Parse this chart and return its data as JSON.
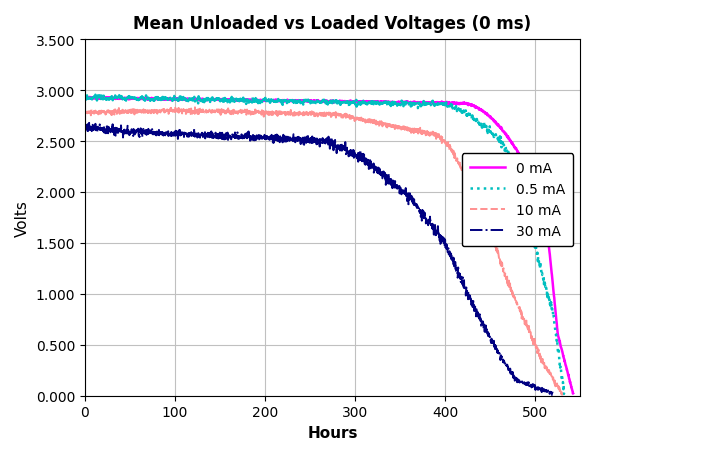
{
  "title": "Mean Unloaded vs Loaded Voltages (0 ms)",
  "xlabel": "Hours",
  "ylabel": "Volts",
  "xlim": [
    0,
    550
  ],
  "ylim": [
    0.0,
    3.5
  ],
  "xticks": [
    0,
    100,
    200,
    300,
    400,
    500
  ],
  "yticks": [
    0.0,
    0.5,
    1.0,
    1.5,
    2.0,
    2.5,
    3.0,
    3.5
  ],
  "series": [
    {
      "label": "0 mA",
      "color": "#FF00FF",
      "linestyle": "solid",
      "linewidth": 1.8,
      "end_hour": 542,
      "segments": [
        {
          "t0": 0,
          "t1": 420,
          "v0": 2.925,
          "v1": 2.87,
          "noise": 0.004
        },
        {
          "t0": 420,
          "t1": 510,
          "v0": 2.87,
          "v1": 1.9,
          "noise": 0.004,
          "curve": 1.8
        },
        {
          "t0": 510,
          "t1": 520,
          "v0": 1.9,
          "v1": 1.05,
          "noise": 0.004,
          "curve": 1.0
        },
        {
          "t0": 520,
          "t1": 525,
          "v0": 1.05,
          "v1": 0.6,
          "noise": 0.004,
          "curve": 1.0
        },
        {
          "t0": 525,
          "t1": 542,
          "v0": 0.6,
          "v1": 0.02,
          "noise": 0.004,
          "curve": 1.0
        }
      ]
    },
    {
      "label": "0.5 mA",
      "color": "#00BFBF",
      "linestyle": "dotted",
      "linewidth": 1.8,
      "end_hour": 532,
      "segments": [
        {
          "t0": 0,
          "t1": 400,
          "v0": 2.93,
          "v1": 2.86,
          "noise": 0.012
        },
        {
          "t0": 400,
          "t1": 460,
          "v0": 2.86,
          "v1": 2.5,
          "noise": 0.015,
          "curve": 1.5
        },
        {
          "t0": 460,
          "t1": 500,
          "v0": 2.5,
          "v1": 1.45,
          "noise": 0.02,
          "curve": 1.5
        },
        {
          "t0": 500,
          "t1": 520,
          "v0": 1.45,
          "v1": 0.8,
          "noise": 0.02,
          "curve": 1.0
        },
        {
          "t0": 520,
          "t1": 532,
          "v0": 0.8,
          "v1": 0.02,
          "noise": 0.02,
          "curve": 1.0
        }
      ]
    },
    {
      "label": "10 mA",
      "color": "#FF9090",
      "linestyle": "dashed",
      "linewidth": 1.4,
      "end_hour": 530,
      "segments": [
        {
          "t0": 0,
          "t1": 100,
          "v0": 2.78,
          "v1": 2.8,
          "noise": 0.012
        },
        {
          "t0": 100,
          "t1": 280,
          "v0": 2.8,
          "v1": 2.76,
          "noise": 0.012
        },
        {
          "t0": 280,
          "t1": 390,
          "v0": 2.76,
          "v1": 2.56,
          "noise": 0.012
        },
        {
          "t0": 390,
          "t1": 430,
          "v0": 2.56,
          "v1": 2.0,
          "noise": 0.015,
          "curve": 1.5
        },
        {
          "t0": 430,
          "t1": 470,
          "v0": 2.0,
          "v1": 1.1,
          "noise": 0.018,
          "curve": 1.2
        },
        {
          "t0": 470,
          "t1": 510,
          "v0": 1.1,
          "v1": 0.3,
          "noise": 0.018,
          "curve": 1.0
        },
        {
          "t0": 510,
          "t1": 530,
          "v0": 0.3,
          "v1": 0.02,
          "noise": 0.012,
          "curve": 1.0
        }
      ]
    },
    {
      "label": "30 mA",
      "color": "#000080",
      "linestyle": "dashdot",
      "linewidth": 1.4,
      "end_hour": 520,
      "segments": [
        {
          "t0": 0,
          "t1": 50,
          "v0": 2.63,
          "v1": 2.59,
          "noise": 0.022
        },
        {
          "t0": 50,
          "t1": 180,
          "v0": 2.59,
          "v1": 2.54,
          "noise": 0.018
        },
        {
          "t0": 180,
          "t1": 270,
          "v0": 2.54,
          "v1": 2.5,
          "noise": 0.018
        },
        {
          "t0": 270,
          "t1": 310,
          "v0": 2.5,
          "v1": 2.32,
          "noise": 0.025,
          "curve": 1.0
        },
        {
          "t0": 310,
          "t1": 360,
          "v0": 2.32,
          "v1": 1.95,
          "noise": 0.025,
          "curve": 1.0
        },
        {
          "t0": 360,
          "t1": 400,
          "v0": 1.95,
          "v1": 1.5,
          "noise": 0.025,
          "curve": 1.0
        },
        {
          "t0": 400,
          "t1": 430,
          "v0": 1.5,
          "v1": 0.9,
          "noise": 0.025,
          "curve": 1.0
        },
        {
          "t0": 430,
          "t1": 460,
          "v0": 0.9,
          "v1": 0.4,
          "noise": 0.02,
          "curve": 1.0
        },
        {
          "t0": 460,
          "t1": 480,
          "v0": 0.4,
          "v1": 0.15,
          "noise": 0.015,
          "curve": 1.0
        },
        {
          "t0": 480,
          "t1": 520,
          "v0": 0.15,
          "v1": 0.02,
          "noise": 0.01,
          "curve": 1.0
        }
      ]
    }
  ],
  "title_fontsize": 12,
  "label_fontsize": 11,
  "tick_fontsize": 10
}
